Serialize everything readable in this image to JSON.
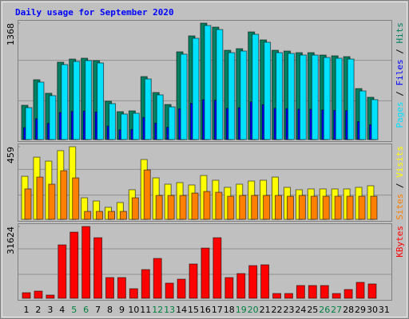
{
  "chart_data": [
    {
      "type": "bar",
      "title": "Daily usage for September 2020",
      "legend_separator": " / ",
      "ylim": [
        0,
        1368
      ],
      "yticks": [
        1368
      ],
      "series": [
        {
          "name": "Hits",
          "color": "#008060",
          "values": [
            403,
            703,
            544,
            909,
            946,
            956,
            928,
            450,
            328,
            337,
            740,
            553,
            412,
            1031,
            1218,
            1368,
            1321,
            1049,
            1068,
            1265,
            1171,
            1049,
            1040,
            1021,
            1021,
            993,
            984,
            974,
            599,
            497,
            null
          ]
        },
        {
          "name": "Files",
          "color": "#0000ff",
          "values": [
            140,
            245,
            190,
            318,
            331,
            335,
            325,
            158,
            115,
            118,
            259,
            194,
            144,
            361,
            426,
            468,
            462,
            367,
            374,
            443,
            410,
            367,
            364,
            357,
            357,
            348,
            344,
            341,
            210,
            174,
            null
          ]
        },
        {
          "name": "Pages",
          "color": "#00e0ff",
          "values": [
            375,
            675,
            516,
            881,
            918,
            928,
            900,
            422,
            300,
            309,
            712,
            525,
            384,
            1003,
            1190,
            1340,
            1293,
            1021,
            1040,
            1237,
            1143,
            1021,
            1012,
            993,
            993,
            965,
            956,
            946,
            571,
            469,
            null
          ]
        }
      ]
    },
    {
      "type": "bar",
      "legend_separator": " / ",
      "ylim": [
        0,
        459
      ],
      "yticks": [
        459
      ],
      "series": [
        {
          "name": "Visits",
          "color": "#ffff00",
          "values": [
            272,
            393,
            368,
            434,
            459,
            136,
            116,
            76,
            106,
            187,
            378,
            262,
            222,
            232,
            217,
            277,
            247,
            202,
            222,
            242,
            247,
            267,
            202,
            187,
            192,
            192,
            192,
            192,
            202,
            212,
            null
          ]
        },
        {
          "name": "Sites",
          "color": "#ff8000",
          "values": [
            192,
            267,
            222,
            307,
            262,
            50,
            50,
            50,
            50,
            136,
            312,
            151,
            151,
            151,
            166,
            176,
            171,
            146,
            151,
            151,
            151,
            151,
            146,
            151,
            146,
            146,
            146,
            146,
            146,
            146,
            null
          ]
        }
      ]
    },
    {
      "type": "bar",
      "ylim": [
        0,
        31624
      ],
      "yticks": [
        31624
      ],
      "categories": [
        "1",
        "2",
        "3",
        "4",
        "5",
        "6",
        "7",
        "8",
        "9",
        "10",
        "11",
        "12",
        "13",
        "14",
        "15",
        "16",
        "17",
        "18",
        "19",
        "20",
        "21",
        "22",
        "23",
        "24",
        "25",
        "26",
        "27",
        "28",
        "29",
        "30",
        "31"
      ],
      "weekends": [
        "5",
        "6",
        "12",
        "13",
        "19",
        "20",
        "26",
        "27"
      ],
      "weekend_color": "#008040",
      "series": [
        {
          "name": "KBytes",
          "color": "#ff0000",
          "values": [
            2457,
            3159,
            1404,
            23517,
            29133,
            31624,
            26676,
            9126,
            9126,
            4212,
            12636,
            17550,
            6669,
            8424,
            15093,
            22113,
            26676,
            9126,
            10881,
            14391,
            14742,
            2106,
            2106,
            5616,
            5616,
            5616,
            2106,
            3861,
            7020,
            6318,
            null
          ]
        }
      ]
    }
  ]
}
